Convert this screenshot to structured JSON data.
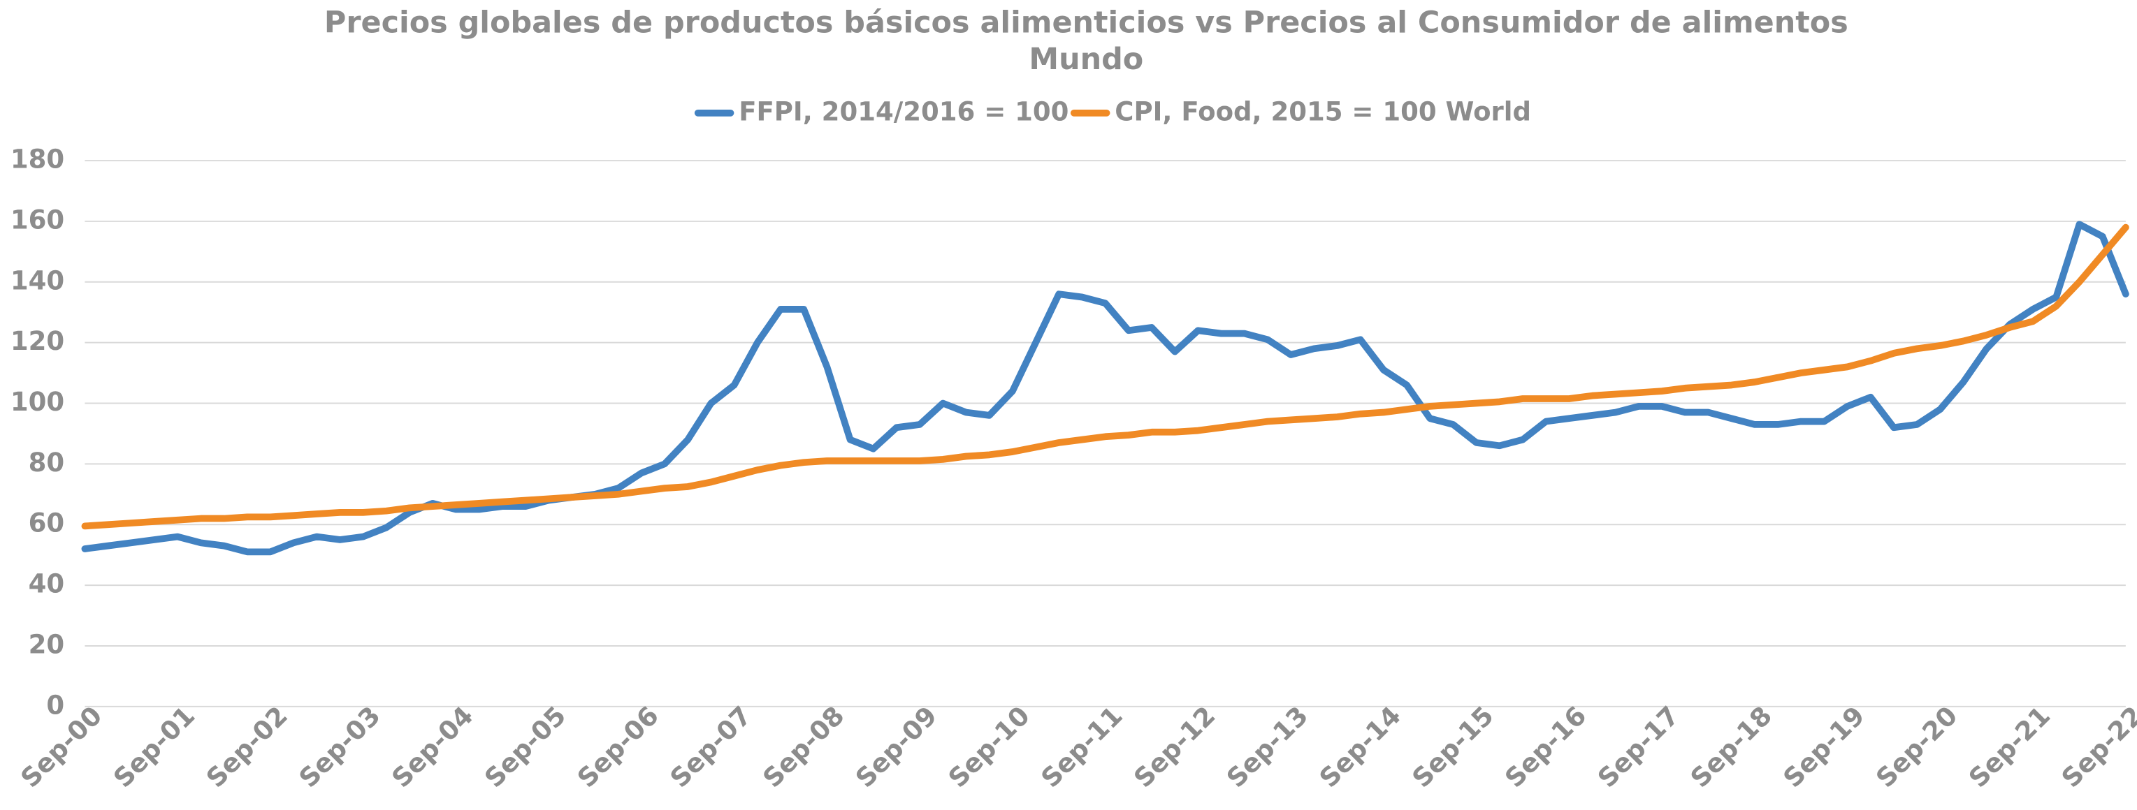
{
  "chart_data": {
    "type": "line",
    "title": "Precios globales de productos básicos alimenticios vs Precios al Consumidor de alimentos",
    "subtitle": "Mundo",
    "categories": [
      "Sep-00",
      null,
      null,
      null,
      "Sep-01",
      null,
      null,
      null,
      "Sep-02",
      null,
      null,
      null,
      "Sep-03",
      null,
      null,
      null,
      "Sep-04",
      null,
      null,
      null,
      "Sep-05",
      null,
      null,
      null,
      "Sep-06",
      null,
      null,
      null,
      "Sep-07",
      null,
      null,
      null,
      "Sep-08",
      null,
      null,
      null,
      "Sep-09",
      null,
      null,
      null,
      "Sep-10",
      null,
      null,
      null,
      "Sep-11",
      null,
      null,
      null,
      "Sep-12",
      null,
      null,
      null,
      "Sep-13",
      null,
      null,
      null,
      "Sep-14",
      null,
      null,
      null,
      "Sep-15",
      null,
      null,
      null,
      "Sep-16",
      null,
      null,
      null,
      "Sep-17",
      null,
      null,
      null,
      "Sep-18",
      null,
      null,
      null,
      "Sep-19",
      null,
      null,
      null,
      "Sep-20",
      null,
      null,
      null,
      "Sep-21",
      null,
      null,
      null,
      "Sep-22"
    ],
    "series": [
      {
        "name": "FFPI, 2014/2016 = 100",
        "color": "#4282c2",
        "values": [
          52,
          53,
          54,
          55,
          56,
          54,
          53,
          51,
          51,
          54,
          56,
          55,
          56,
          59,
          64,
          67,
          65,
          65,
          66,
          66,
          68,
          69,
          70,
          72,
          77,
          80,
          88,
          100,
          106,
          120,
          131,
          131,
          112,
          88,
          85,
          92,
          93,
          100,
          97,
          96,
          104,
          120,
          136,
          135,
          133,
          124,
          125,
          117,
          124,
          123,
          123,
          121,
          116,
          118,
          119,
          121,
          111,
          106,
          95,
          93,
          87,
          86,
          88,
          94,
          95,
          96,
          97,
          99,
          99,
          97,
          97,
          95,
          93,
          93,
          94,
          94,
          99,
          102,
          92,
          93,
          98,
          107,
          118,
          126,
          131,
          135,
          159,
          155,
          136
        ]
      },
      {
        "name": "CPI, Food, 2015 = 100 World",
        "color": "#f08a24",
        "values": [
          59.5,
          60,
          60.5,
          61,
          61.5,
          62,
          62,
          62.5,
          62.5,
          63,
          63.5,
          64,
          64,
          64.5,
          65.5,
          66,
          66.5,
          67,
          67.5,
          68,
          68.5,
          69,
          69.5,
          70,
          71,
          72,
          72.5,
          74,
          76,
          78,
          79.5,
          80.5,
          81,
          81,
          81,
          81,
          81,
          81.5,
          82.5,
          83,
          84,
          85.5,
          87,
          88,
          89,
          89.5,
          90.5,
          90.5,
          91,
          92,
          93,
          94,
          94.5,
          95,
          95.5,
          96.5,
          97,
          98,
          99,
          99.5,
          100,
          100.5,
          101.5,
          101.5,
          101.5,
          102.5,
          103,
          103.5,
          104,
          105,
          105.5,
          106,
          107,
          108.5,
          110,
          111,
          112,
          114,
          116.5,
          118,
          119,
          120.5,
          122.5,
          125,
          127,
          132,
          140,
          149,
          158
        ]
      }
    ],
    "ylim": [
      0,
      180
    ],
    "yticks": [
      0,
      20,
      40,
      60,
      80,
      100,
      120,
      140,
      160,
      180
    ],
    "grid": true,
    "legend": "top"
  }
}
